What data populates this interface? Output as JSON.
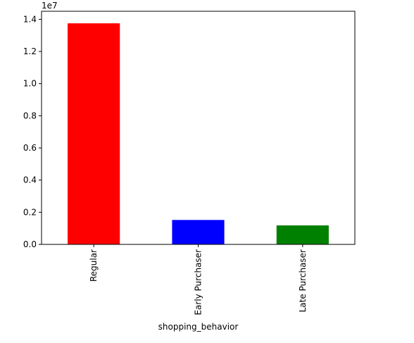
{
  "chart_data": {
    "type": "bar",
    "categories": [
      "Regular",
      "Early Purchaser",
      "Late Purchaser"
    ],
    "values": [
      13750000,
      1520000,
      1180000
    ],
    "colors": [
      "#ff0000",
      "#0000ff",
      "#008000"
    ],
    "xlabel": "shopping_behavior",
    "ylabel": "",
    "ylim": [
      0,
      14500000
    ],
    "yticks": [
      0,
      2000000,
      4000000,
      6000000,
      8000000,
      10000000,
      12000000,
      14000000
    ],
    "ytick_labels": [
      "0.0",
      "0.2",
      "0.4",
      "0.6",
      "0.8",
      "1.0",
      "1.2",
      "1.4"
    ],
    "offset_label": "1e7",
    "grid": false,
    "legend": false
  }
}
